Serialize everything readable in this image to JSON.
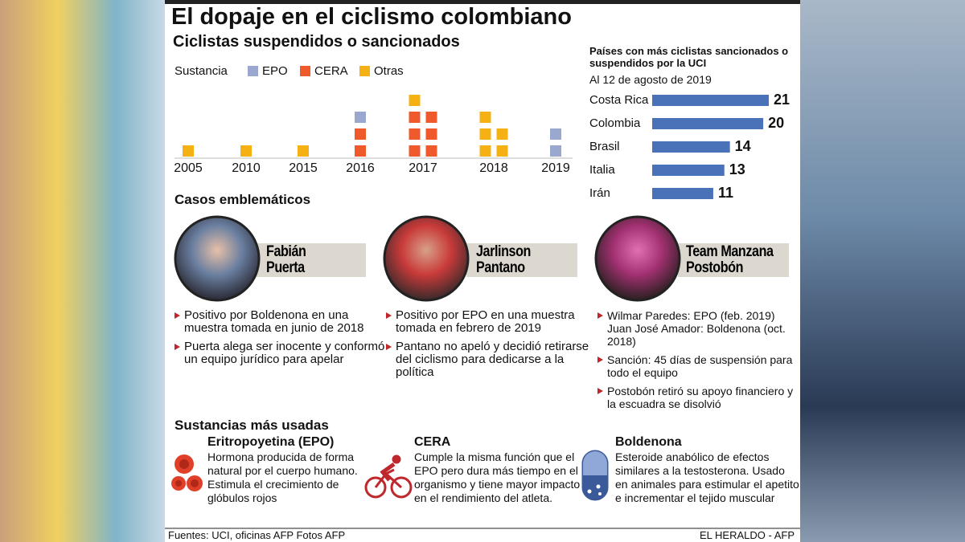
{
  "header": {
    "title": "El dopaje en el ciclismo colombiano",
    "subtitle": "Ciclistas suspendidos o sancionados"
  },
  "chart_data": [
    {
      "type": "unit",
      "legend_title": "Sustancia",
      "categories": [
        "2005",
        "2010",
        "2015",
        "2016",
        "2017",
        "2018",
        "2019"
      ],
      "series": [
        {
          "name": "EPO",
          "color": "#9aa7cf",
          "values": [
            0,
            0,
            0,
            1,
            0,
            0,
            2
          ]
        },
        {
          "name": "CERA",
          "color": "#ee5a2b",
          "values": [
            0,
            0,
            0,
            2,
            6,
            0,
            0
          ]
        },
        {
          "name": "Otras",
          "color": "#f5b014",
          "values": [
            1,
            1,
            1,
            0,
            1,
            5,
            0
          ]
        }
      ]
    },
    {
      "type": "bar",
      "orientation": "horizontal",
      "title": "Países con más ciclistas sancionados o suspendidos por la UCI",
      "subtitle": "Al 12 de agosto de 2019",
      "categories": [
        "Costa Rica",
        "Colombia",
        "Brasil",
        "Italia",
        "Irán"
      ],
      "values": [
        21,
        20,
        14,
        13,
        11
      ],
      "color": "#4a72b8"
    }
  ],
  "cases": {
    "title": "Casos emblemáticos",
    "items": [
      {
        "name_lines": [
          "Fabián",
          "Puerta"
        ],
        "bullets": [
          "Positivo por Boldenona en una muestra tomada en junio de 2018",
          "Puerta alega ser inocente y conformó un equipo jurídico para apelar"
        ]
      },
      {
        "name_lines": [
          "Jarlinson",
          "Pantano"
        ],
        "bullets": [
          "Positivo por EPO en una muestra tomada en febrero de 2019",
          "Pantano no apeló y decidió retirarse del ciclismo para dedicarse a la política"
        ]
      },
      {
        "name_lines": [
          "Team Manzana",
          "Postobón"
        ],
        "bullets": [
          "Wilmar Paredes: EPO (feb. 2019) Juan José Amador: Boldenona (oct. 2018)",
          "Sanción: 45 días de suspensión para todo el equipo",
          "Postobón retiró su apoyo financiero y la escuadra se disolvió"
        ]
      }
    ]
  },
  "substances": {
    "title": "Sustancias más usadas",
    "items": [
      {
        "name": "Eritropoyetina (EPO)",
        "description": "Hormona producida de forma natural por el cuerpo humano. Estimula el crecimiento de glóbulos rojos"
      },
      {
        "name": "CERA",
        "description": "Cumple la misma función que el EPO pero dura más tiempo en el organismo y tiene mayor impacto en el rendimiento del atleta."
      },
      {
        "name": "Boldenona",
        "description": "Esteroide anabólico de efectos similares a la testosterona. Usado en animales para estimular el apetito e incrementar el tejido muscular"
      }
    ]
  },
  "footer": {
    "sources": "Fuentes: UCI, oficinas AFP  Fotos AFP",
    "credit": "EL HERALDO - AFP"
  }
}
